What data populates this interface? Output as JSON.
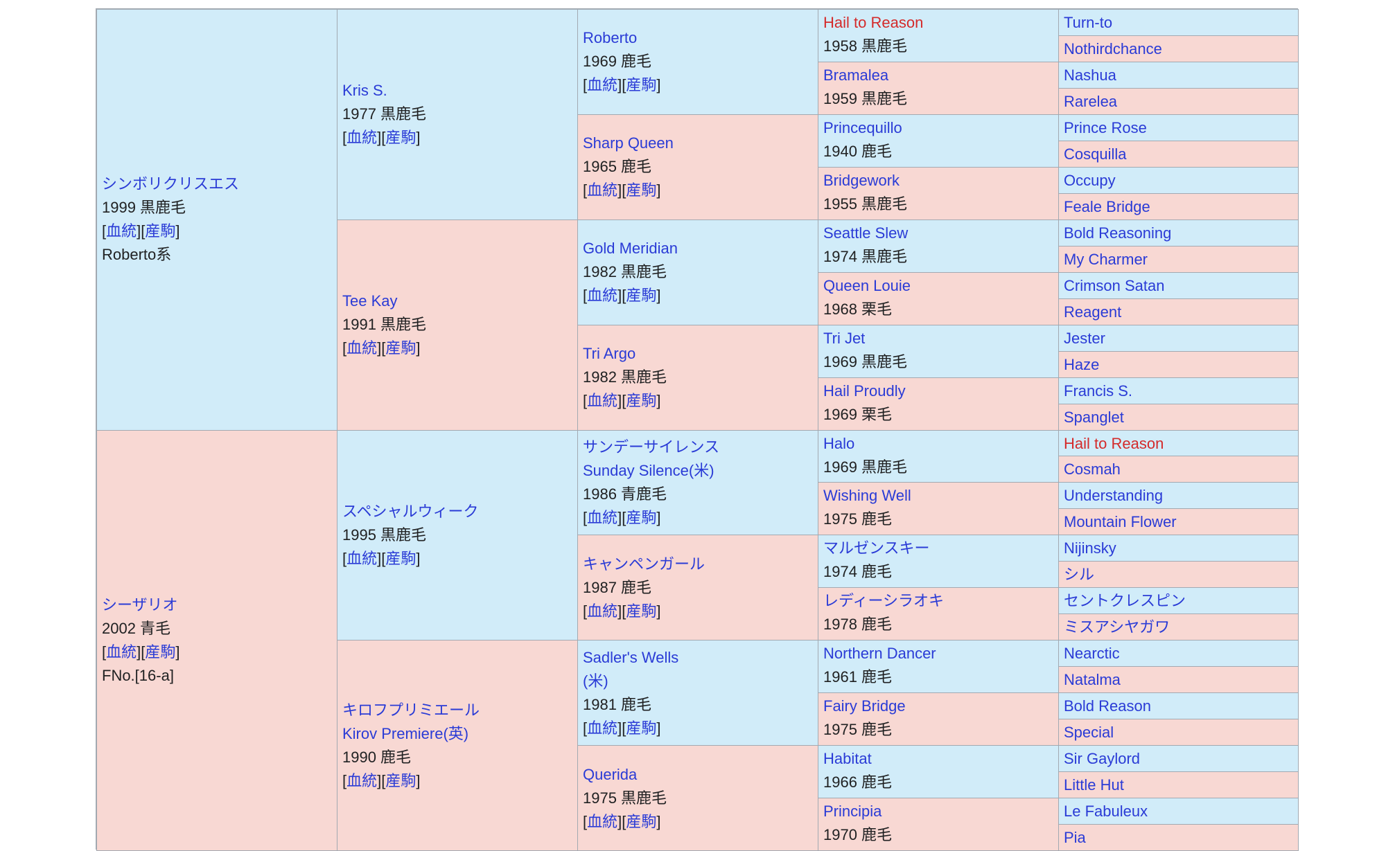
{
  "link_labels": {
    "bloodline": "血統",
    "offspring": "産駒"
  },
  "colors": {
    "sire_side": "#d1ecf9",
    "dam_side": "#f8d8d3",
    "link": "#2a3bd6",
    "highlight_name": "#d42a2a",
    "border": "#a2a9b1"
  },
  "gen1": [
    {
      "name_lines": [
        "シンボリクリスエス"
      ],
      "info": "1999 黒鹿毛",
      "links": true,
      "extra": "Roberto系"
    },
    {
      "name_lines": [
        "シーザリオ"
      ],
      "info": "2002 青毛",
      "links": true,
      "extra": "FNo.[16-a]"
    }
  ],
  "gen2": [
    {
      "name_lines": [
        "Kris S."
      ],
      "info": "1977 黒鹿毛",
      "links": true
    },
    {
      "name_lines": [
        "Tee Kay"
      ],
      "info": "1991 黒鹿毛",
      "links": true
    },
    {
      "name_lines": [
        "スペシャルウィーク"
      ],
      "info": "1995 黒鹿毛",
      "links": true
    },
    {
      "name_lines": [
        "キロフプリミエール",
        "Kirov Premiere(英)"
      ],
      "info": "1990 鹿毛",
      "links": true
    }
  ],
  "gen3": [
    {
      "name_lines": [
        "Roberto"
      ],
      "info": "1969 鹿毛",
      "links": true
    },
    {
      "name_lines": [
        "Sharp Queen"
      ],
      "info": "1965 鹿毛",
      "links": true
    },
    {
      "name_lines": [
        "Gold Meridian"
      ],
      "info": "1982 黒鹿毛",
      "links": true
    },
    {
      "name_lines": [
        "Tri Argo"
      ],
      "info": "1982 黒鹿毛",
      "links": true
    },
    {
      "name_lines": [
        "サンデーサイレンス",
        "Sunday Silence(米)"
      ],
      "info": "1986 青鹿毛",
      "links": true
    },
    {
      "name_lines": [
        "キャンペンガール"
      ],
      "info": "1987 鹿毛",
      "links": true
    },
    {
      "name_lines": [
        "Sadler's Wells",
        "(米)"
      ],
      "info": "1981 鹿毛",
      "links": true
    },
    {
      "name_lines": [
        "Querida"
      ],
      "info": "1975 黒鹿毛",
      "links": true
    }
  ],
  "gen4": [
    {
      "name": "Hail to Reason",
      "info": "1958 黒鹿毛",
      "highlight": true
    },
    {
      "name": "Bramalea",
      "info": "1959 黒鹿毛"
    },
    {
      "name": "Princequillo",
      "info": "1940 鹿毛"
    },
    {
      "name": "Bridgework",
      "info": "1955 黒鹿毛"
    },
    {
      "name": "Seattle Slew",
      "info": "1974 黒鹿毛"
    },
    {
      "name": "Queen Louie",
      "info": "1968 栗毛"
    },
    {
      "name": "Tri Jet",
      "info": "1969 黒鹿毛"
    },
    {
      "name": "Hail Proudly",
      "info": "1969 栗毛"
    },
    {
      "name": "Halo",
      "info": "1969 黒鹿毛"
    },
    {
      "name": "Wishing Well",
      "info": "1975 鹿毛"
    },
    {
      "name": "マルゼンスキー",
      "info": "1974 鹿毛"
    },
    {
      "name": "レディーシラオキ",
      "info": "1978 鹿毛"
    },
    {
      "name": "Northern Dancer",
      "info": "1961 鹿毛"
    },
    {
      "name": "Fairy Bridge",
      "info": "1975 鹿毛"
    },
    {
      "name": "Habitat",
      "info": "1966 鹿毛"
    },
    {
      "name": "Principia",
      "info": "1970 鹿毛"
    }
  ],
  "gen5": [
    {
      "name": "Turn-to"
    },
    {
      "name": "Nothirdchance"
    },
    {
      "name": "Nashua"
    },
    {
      "name": "Rarelea"
    },
    {
      "name": "Prince Rose"
    },
    {
      "name": "Cosquilla"
    },
    {
      "name": "Occupy"
    },
    {
      "name": "Feale Bridge"
    },
    {
      "name": "Bold Reasoning"
    },
    {
      "name": "My Charmer"
    },
    {
      "name": "Crimson Satan"
    },
    {
      "name": "Reagent"
    },
    {
      "name": "Jester"
    },
    {
      "name": "Haze"
    },
    {
      "name": "Francis S."
    },
    {
      "name": "Spanglet"
    },
    {
      "name": "Hail to Reason",
      "highlight": true
    },
    {
      "name": "Cosmah"
    },
    {
      "name": "Understanding"
    },
    {
      "name": "Mountain Flower"
    },
    {
      "name": "Nijinsky"
    },
    {
      "name": "シル"
    },
    {
      "name": "セントクレスピン"
    },
    {
      "name": "ミスアシヤガワ"
    },
    {
      "name": "Nearctic"
    },
    {
      "name": "Natalma"
    },
    {
      "name": "Bold Reason"
    },
    {
      "name": "Special"
    },
    {
      "name": "Sir Gaylord"
    },
    {
      "name": "Little Hut"
    },
    {
      "name": "Le Fabuleux"
    },
    {
      "name": "Pia"
    }
  ]
}
